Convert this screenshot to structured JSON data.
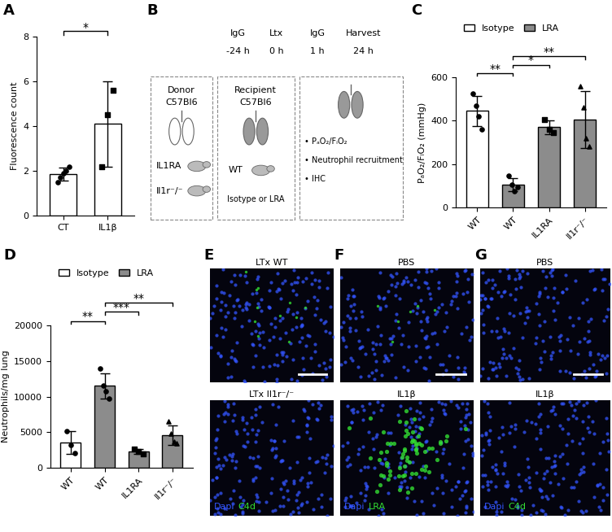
{
  "chart_data": [
    {
      "panel": "A",
      "type": "bar",
      "categories": [
        "CT",
        "IL1β"
      ],
      "values": [
        1.85,
        4.1
      ],
      "errors": [
        0.3,
        1.9
      ],
      "points": [
        [
          1.5,
          1.7,
          1.9,
          2.0,
          2.2
        ],
        [
          2.2,
          4.5,
          5.6
        ]
      ],
      "color": "#ffffff",
      "ylabel": "Fluorescence count",
      "ylim": [
        0,
        8
      ],
      "yticks": [
        0,
        2,
        4,
        6,
        8
      ],
      "significance": [
        {
          "pair": [
            0,
            1
          ],
          "label": "*"
        }
      ]
    },
    {
      "panel": "C",
      "type": "bar",
      "categories": [
        "WT",
        "WT",
        "IL1RA",
        "Il1r⁻/⁻"
      ],
      "series": [
        {
          "name": "Isotype",
          "color": "#ffffff",
          "values": [
            445,
            null,
            null,
            null
          ],
          "errors": [
            70,
            null,
            null,
            null
          ],
          "points": [
            [
              525,
              470,
              420,
              360
            ],
            null,
            null,
            null
          ]
        },
        {
          "name": "LRA",
          "color": "#8c8c8c",
          "values": [
            null,
            105,
            370,
            405
          ],
          "errors": [
            null,
            30,
            32,
            130
          ],
          "points": [
            null,
            [
              145,
              105,
              75,
              95
            ],
            [
              405,
              360,
              345
            ],
            [
              560,
              460,
              320,
              280
            ]
          ]
        }
      ],
      "ylabel": "PₐO₂/FᵢO₂ (mmHg)",
      "ylim": [
        0,
        600
      ],
      "yticks": [
        0,
        200,
        400,
        600
      ],
      "legend": "upper left",
      "significance": [
        {
          "pair": [
            0,
            1
          ],
          "label": "**"
        },
        {
          "pair": [
            1,
            2
          ],
          "label": "*"
        },
        {
          "pair": [
            1,
            3
          ],
          "label": "**"
        }
      ]
    },
    {
      "panel": "D",
      "type": "bar",
      "categories": [
        "WT",
        "WT",
        "IL1RA",
        "Il1r⁻/⁻"
      ],
      "series": [
        {
          "name": "Isotype",
          "color": "#ffffff",
          "values": [
            3500,
            null,
            null,
            null
          ],
          "errors": [
            1600,
            null,
            null,
            null
          ],
          "points": [
            [
              5200,
              3200,
              2100
            ],
            null,
            null,
            null
          ]
        },
        {
          "name": "LRA",
          "color": "#8c8c8c",
          "values": [
            null,
            11500,
            2300,
            4600
          ],
          "errors": [
            null,
            1800,
            300,
            1400
          ],
          "points": [
            null,
            [
              14000,
              11500,
              10800,
              9700
            ],
            [
              2600,
              2300,
              2000
            ],
            [
              6500,
              4800,
              3700,
              3400
            ]
          ]
        }
      ],
      "ylabel": "Neutrophils/mg lung",
      "ylim": [
        0,
        20000
      ],
      "yticks": [
        0,
        5000,
        10000,
        15000,
        20000
      ],
      "legend": "upper left",
      "significance": [
        {
          "pair": [
            0,
            1
          ],
          "label": "**"
        },
        {
          "pair": [
            1,
            2
          ],
          "label": "***"
        },
        {
          "pair": [
            1,
            3
          ],
          "label": "**"
        }
      ]
    }
  ],
  "diagram": {
    "panel": "B",
    "donor": {
      "title": "Donor",
      "strain": "C57Bl6",
      "groups": [
        "IL1RA",
        "Il1r⁻/⁻"
      ]
    },
    "recipient": {
      "title": "Recipient",
      "strain": "C57Bl6",
      "group": "WT",
      "treatment": "Isotype or LRA"
    },
    "timeline": [
      {
        "label": "IgG",
        "time": "-24 h"
      },
      {
        "label": "Ltx",
        "time": "0 h"
      },
      {
        "label": "IgG",
        "time": "1 h"
      },
      {
        "label": "Harvest",
        "time": "24 h"
      }
    ],
    "readouts": [
      "• PₐO₂/FᵢO₂",
      "• Neutrophil recruitment",
      "• IHC"
    ]
  },
  "images": [
    {
      "panel": "E",
      "stain": [
        {
          "name": "Dapi",
          "color": "#3355ff"
        },
        {
          "name": "C4d",
          "color": "#33dd33"
        }
      ],
      "rows": [
        {
          "label": "LTx WT"
        },
        {
          "label": "LTx Il1r⁻/⁻"
        }
      ]
    },
    {
      "panel": "F",
      "stain": [
        {
          "name": "Dapi",
          "color": "#3355ff"
        },
        {
          "name": "LRA",
          "color": "#33dd33"
        }
      ],
      "rows": [
        {
          "label": "PBS"
        },
        {
          "label": "IL1β"
        }
      ]
    },
    {
      "panel": "G",
      "stain": [
        {
          "name": "Dapi",
          "color": "#3355ff"
        },
        {
          "name": "C4d",
          "color": "#33dd33"
        }
      ],
      "rows": [
        {
          "label": "PBS"
        },
        {
          "label": "IL1β"
        }
      ]
    }
  ]
}
